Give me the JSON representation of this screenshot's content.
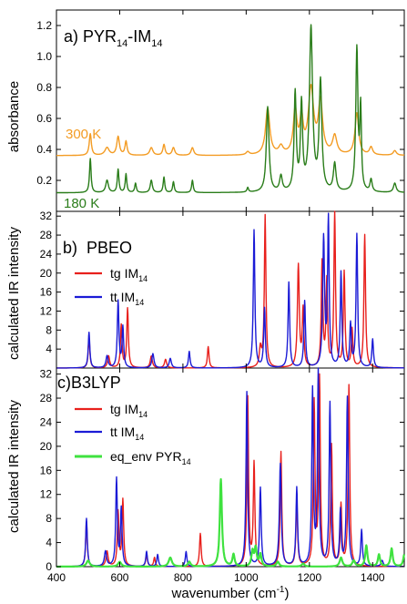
{
  "chart_data": [
    {
      "panel_label": "a) PYR",
      "panel_sub1": "14",
      "panel_mid": "-IM",
      "panel_sub2": "14",
      "type": "line",
      "ylabel": "absorbance",
      "xlim": [
        400,
        1500
      ],
      "ylim": [
        0,
        1.3
      ],
      "yticks": [
        0.2,
        0.4,
        0.6,
        0.8,
        1.0,
        1.2
      ],
      "ytick_labels": [
        "0.2",
        "0.4",
        "0.6",
        "0.8",
        "1.0",
        "1.2"
      ],
      "annotations": [
        {
          "text": "300 K",
          "color": "#f39c24"
        },
        {
          "text": "180 K",
          "color": "#2a7d1a"
        }
      ],
      "series": [
        {
          "color": "#f39c24",
          "baseline": 0.36,
          "peaks": [
            [
              507,
              0.14,
              4
            ],
            [
              560,
              0.05,
              8
            ],
            [
              595,
              0.12,
              5
            ],
            [
              620,
              0.09,
              4
            ],
            [
              700,
              0.05,
              6
            ],
            [
              740,
              0.07,
              4
            ],
            [
              770,
              0.05,
              5
            ],
            [
              830,
              0.05,
              5
            ],
            [
              1005,
              0.02,
              6
            ],
            [
              1068,
              0.3,
              8
            ],
            [
              1110,
              0.05,
              8
            ],
            [
              1155,
              0.28,
              7
            ],
            [
              1175,
              0.22,
              6
            ],
            [
              1205,
              0.42,
              10
            ],
            [
              1235,
              0.33,
              8
            ],
            [
              1280,
              0.12,
              8
            ],
            [
              1350,
              0.27,
              7
            ],
            [
              1395,
              0.05,
              6
            ],
            [
              1470,
              0.03,
              6
            ]
          ]
        },
        {
          "color": "#2a7d1a",
          "baseline": 0.12,
          "peaks": [
            [
              507,
              0.22,
              3
            ],
            [
              560,
              0.08,
              5
            ],
            [
              595,
              0.15,
              3
            ],
            [
              620,
              0.12,
              3
            ],
            [
              650,
              0.06,
              3
            ],
            [
              700,
              0.08,
              4
            ],
            [
              740,
              0.1,
              3
            ],
            [
              770,
              0.07,
              3
            ],
            [
              830,
              0.08,
              3
            ],
            [
              1005,
              0.03,
              3
            ],
            [
              1068,
              0.55,
              5
            ],
            [
              1110,
              0.1,
              5
            ],
            [
              1155,
              0.63,
              4
            ],
            [
              1175,
              0.55,
              4
            ],
            [
              1205,
              1.05,
              6
            ],
            [
              1235,
              0.7,
              5
            ],
            [
              1280,
              0.18,
              5
            ],
            [
              1350,
              0.92,
              4
            ],
            [
              1362,
              0.52,
              3
            ],
            [
              1395,
              0.08,
              4
            ],
            [
              1470,
              0.06,
              5
            ]
          ]
        }
      ]
    },
    {
      "panel_label": "b)  PBEO",
      "type": "line",
      "ylabel": "calculated IR intensity",
      "xlim": [
        400,
        1500
      ],
      "ylim": [
        0,
        33
      ],
      "yticks": [
        4,
        8,
        12,
        16,
        20,
        24,
        28,
        32
      ],
      "ytick_labels": [
        "4",
        "8",
        "12",
        "16",
        "20",
        "24",
        "28",
        "32"
      ],
      "legend": [
        {
          "label": "tg IM",
          "sub": "14",
          "color": "#e8201c"
        },
        {
          "label": "tt IM",
          "sub": "14",
          "color": "#1b1bd6"
        }
      ],
      "series": [
        {
          "name": "tg IM14",
          "color": "#e8201c",
          "baseline": 0,
          "peaks": [
            [
              503,
              6.5,
              3
            ],
            [
              565,
              2.5,
              4
            ],
            [
              605,
              9,
              3
            ],
            [
              625,
              12.5,
              3
            ],
            [
              700,
              2.5,
              4
            ],
            [
              745,
              1.8,
              4
            ],
            [
              880,
              4.5,
              3
            ],
            [
              1045,
              4,
              4
            ],
            [
              1060,
              32,
              3
            ],
            [
              1165,
              21.5,
              3.5
            ],
            [
              1180,
              12,
              3
            ],
            [
              1240,
              22,
              3
            ],
            [
              1255,
              18,
              3
            ],
            [
              1280,
              33,
              3
            ],
            [
              1310,
              20,
              3
            ],
            [
              1335,
              8,
              3
            ],
            [
              1375,
              28,
              3
            ]
          ]
        },
        {
          "name": "tt IM14",
          "color": "#1b1bd6",
          "baseline": 0,
          "peaks": [
            [
              503,
              7.5,
              3
            ],
            [
              560,
              2.5,
              4
            ],
            [
              595,
              14,
              3
            ],
            [
              610,
              8.5,
              3
            ],
            [
              705,
              3,
              4
            ],
            [
              760,
              2,
              4
            ],
            [
              820,
              3.5,
              3
            ],
            [
              1025,
              29,
              3
            ],
            [
              1058,
              12.5,
              3
            ],
            [
              1135,
              18,
              3
            ],
            [
              1185,
              14,
              3
            ],
            [
              1245,
              27,
              3.5
            ],
            [
              1260,
              31,
              3
            ],
            [
              1300,
              20,
              3
            ],
            [
              1330,
              9,
              3
            ],
            [
              1350,
              28,
              3
            ],
            [
              1400,
              6,
              3
            ]
          ]
        }
      ]
    },
    {
      "panel_label": "c)B3LYP",
      "type": "line",
      "ylabel": "calculated IR intensity",
      "xlabel": "wavenumber (cm",
      "xlabel_sup": "-1",
      "xlabel_tail": ")",
      "xlim": [
        400,
        1500
      ],
      "ylim": [
        0,
        33
      ],
      "yticks": [
        0,
        4,
        8,
        12,
        16,
        20,
        24,
        28,
        32
      ],
      "ytick_labels": [
        "0",
        "4",
        "8",
        "12",
        "16",
        "20",
        "24",
        "28",
        "32"
      ],
      "xticks": [
        400,
        600,
        800,
        1000,
        1200,
        1400
      ],
      "xtick_labels": [
        "400",
        "600",
        "800",
        "1000",
        "1200",
        "1400"
      ],
      "legend": [
        {
          "label": "tg IM",
          "sub": "14",
          "color": "#e8201c"
        },
        {
          "label": "tt IM",
          "sub": "14",
          "color": "#1b1bd6"
        },
        {
          "label": "eq_env PYR",
          "sub": "14",
          "color": "#3fe23f"
        }
      ],
      "series": [
        {
          "name": "tg IM14",
          "color": "#e8201c",
          "baseline": 0,
          "peaks": [
            [
              495,
              7.5,
              3
            ],
            [
              560,
              2.5,
              4
            ],
            [
              595,
              9,
              3
            ],
            [
              610,
              11,
              3
            ],
            [
              685,
              2,
              3
            ],
            [
              710,
              1.5,
              3
            ],
            [
              855,
              5.5,
              3
            ],
            [
              1005,
              28,
              3
            ],
            [
              1025,
              17,
              3
            ],
            [
              1110,
              19,
              3
            ],
            [
              1160,
              11,
              3
            ],
            [
              1215,
              27,
              3
            ],
            [
              1232,
              31,
              3
            ],
            [
              1270,
              20,
              3
            ],
            [
              1300,
              10,
              3
            ],
            [
              1325,
              30,
              3
            ]
          ]
        },
        {
          "name": "tt IM14",
          "color": "#1b1bd6",
          "baseline": 0,
          "peaks": [
            [
              495,
              8,
              3
            ],
            [
              555,
              2.5,
              4
            ],
            [
              590,
              14.5,
              3
            ],
            [
              605,
              9.5,
              3
            ],
            [
              685,
              2.5,
              3
            ],
            [
              720,
              2,
              3
            ],
            [
              810,
              2.5,
              3
            ],
            [
              1002,
              29,
              3
            ],
            [
              1045,
              13,
              3
            ],
            [
              1108,
              17,
              3.5
            ],
            [
              1160,
              13,
              3
            ],
            [
              1210,
              29,
              3
            ],
            [
              1228,
              32,
              3
            ],
            [
              1265,
              27,
              3
            ],
            [
              1298,
              9,
              3
            ],
            [
              1320,
              28,
              3
            ],
            [
              1365,
              6,
              3
            ],
            [
              1430,
              1,
              4
            ]
          ]
        },
        {
          "name": "eq_env PYR14",
          "color": "#3fe23f",
          "baseline": 0,
          "peaks": [
            [
              500,
              1,
              6
            ],
            [
              600,
              0.8,
              6
            ],
            [
              760,
              1.5,
              6
            ],
            [
              820,
              0.8,
              5
            ],
            [
              920,
              14.5,
              4
            ],
            [
              960,
              2,
              4
            ],
            [
              1020,
              2.5,
              4
            ],
            [
              1030,
              3,
              4
            ],
            [
              1045,
              2,
              4
            ],
            [
              1100,
              0.8,
              5
            ],
            [
              1180,
              0.5,
              5
            ],
            [
              1300,
              1.5,
              5
            ],
            [
              1340,
              1,
              5
            ],
            [
              1380,
              3.5,
              4
            ],
            [
              1420,
              2,
              4
            ],
            [
              1460,
              3,
              4
            ],
            [
              1500,
              2,
              4
            ]
          ]
        }
      ]
    }
  ]
}
